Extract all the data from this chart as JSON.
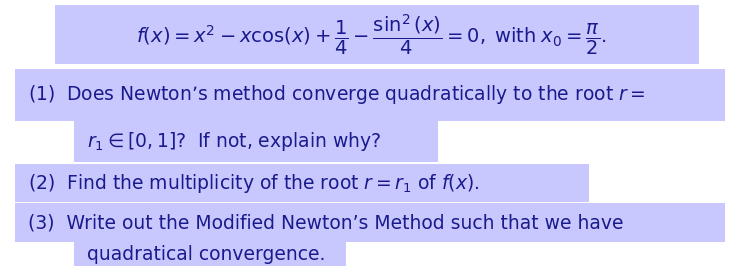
{
  "bg_color": "#ffffff",
  "highlight_color": "#c8c8ff",
  "text_color": "#1a1a8c",
  "fig_width": 7.36,
  "fig_height": 2.66,
  "dpi": 100,
  "formula": "$f(x) = x^2 - x\\cos(x) + \\dfrac{1}{4} - \\dfrac{\\sin^2(x)}{4} = 0, \\;\\mathrm{with}\\; x_0 = \\dfrac{\\pi}{2}.$",
  "line1a": "(1)  Does Newton’s method converge quadratically to the root $r =$",
  "line1b": "$r_1 \\in [0, 1]$?  If not, explain why?",
  "line2": "(2)  Find the multiplicity of the root $r = r_1$ of $f(x)$.",
  "line3": "(3)  Write out the Modified Newton’s Method such that we have",
  "line3b": "quadratical convergence.",
  "fs_formula": 14,
  "fs_text": 13.5
}
